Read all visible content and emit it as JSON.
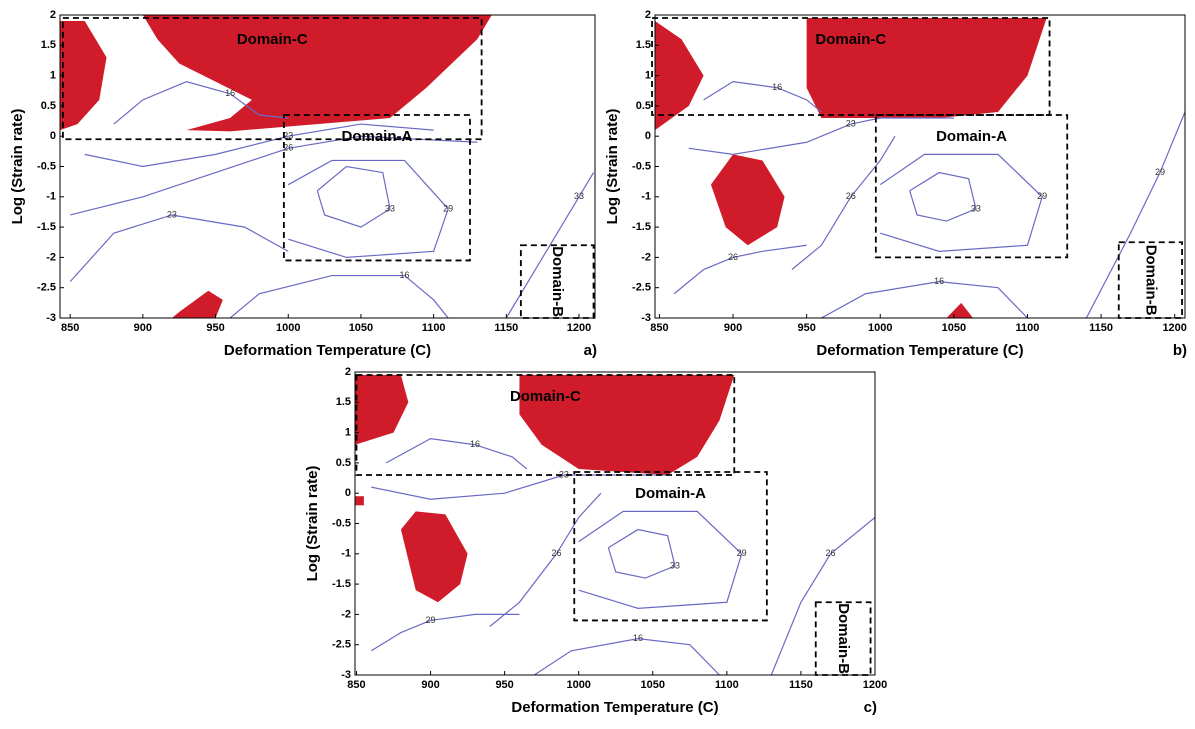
{
  "chart_data": [
    {
      "type": "contour",
      "panel": "a)",
      "xlabel": "Deformation Temperature (C)",
      "ylabel": "Log (Strain rate)",
      "xlim": [
        843,
        1211
      ],
      "ylim": [
        -3,
        2
      ],
      "xticks": [
        850,
        900,
        950,
        1000,
        1050,
        1100,
        1150,
        1200
      ],
      "yticks": [
        2,
        1.5,
        1,
        0.5,
        0,
        -0.5,
        -1,
        -1.5,
        -2,
        -2.5,
        -3
      ],
      "contour_color": "#6a6ac4",
      "region_color": "#d01c2a",
      "unstable_regions": [
        {
          "x": [
            843,
            860,
            875,
            870,
            855,
            843
          ],
          "y": [
            1.9,
            1.9,
            1.3,
            0.6,
            0.2,
            0.1
          ]
        },
        {
          "x": [
            900,
            1140,
            1130,
            1095,
            1070,
            960,
            930,
            960,
            975,
            950,
            925,
            910
          ],
          "y": [
            2,
            2,
            1.6,
            0.8,
            0.3,
            0.08,
            0.1,
            0.3,
            0.6,
            0.9,
            1.2,
            1.6
          ]
        },
        {
          "x": [
            920,
            925,
            945,
            955,
            950
          ],
          "y": [
            -3,
            -2.9,
            -2.55,
            -2.7,
            -3
          ]
        }
      ],
      "contours": [
        {
          "level": 16,
          "x": [
            880,
            900,
            930,
            960,
            980,
            1000
          ],
          "y": [
            0.2,
            0.6,
            0.9,
            0.7,
            0.35,
            0.3
          ]
        },
        {
          "level": 23,
          "x": [
            860,
            900,
            950,
            1000,
            1050,
            1100
          ],
          "y": [
            -0.3,
            -0.5,
            -0.3,
            0,
            0.2,
            0.1
          ]
        },
        {
          "level": 26,
          "x": [
            850,
            900,
            950,
            1000,
            1050,
            1130
          ],
          "y": [
            -1.3,
            -1.0,
            -0.6,
            -0.2,
            0,
            -0.1
          ]
        },
        {
          "level": 29,
          "x": [
            1000,
            1030,
            1080,
            1110,
            1100,
            1040,
            1000
          ],
          "y": [
            -0.8,
            -0.4,
            -0.4,
            -1.2,
            -1.9,
            -2.0,
            -1.7
          ]
        },
        {
          "level": 33,
          "x": [
            1020,
            1040,
            1065,
            1070,
            1050,
            1025,
            1020
          ],
          "y": [
            -0.9,
            -0.5,
            -0.6,
            -1.2,
            -1.5,
            -1.3,
            -0.9
          ]
        },
        {
          "level": 23,
          "x": [
            850,
            880,
            920,
            970,
            1000
          ],
          "y": [
            -2.4,
            -1.6,
            -1.3,
            -1.5,
            -1.9
          ]
        },
        {
          "level": 16,
          "x": [
            960,
            980,
            1030,
            1080,
            1100,
            1110
          ],
          "y": [
            -3,
            -2.6,
            -2.3,
            -2.3,
            -2.7,
            -3
          ]
        },
        {
          "level": 33,
          "x": [
            1150,
            1180,
            1200,
            1210
          ],
          "y": [
            -3,
            -1.8,
            -1.0,
            -0.6
          ]
        }
      ],
      "domains": [
        {
          "label": "Domain-C",
          "x": [
            845,
            1133
          ],
          "y": [
            -0.05,
            1.95
          ]
        },
        {
          "label": "Domain-A",
          "x": [
            997,
            1125
          ],
          "y": [
            -2.05,
            0.35
          ]
        },
        {
          "label": "Domain-B",
          "x": [
            1160,
            1210
          ],
          "y": [
            -3,
            -1.8
          ]
        }
      ]
    },
    {
      "type": "contour",
      "panel": "b)",
      "xlabel": "Deformation Temperature (C)",
      "ylabel": "Log (Strain rate)",
      "xlim": [
        847,
        1207
      ],
      "ylim": [
        -3,
        2
      ],
      "xticks": [
        850,
        900,
        950,
        1000,
        1050,
        1100,
        1150,
        1200
      ],
      "yticks": [
        2,
        1.5,
        1,
        0.5,
        0,
        -0.5,
        -1,
        -1.5,
        -2,
        -2.5,
        -3
      ],
      "contour_color": "#6a6ac4",
      "region_color": "#d01c2a",
      "unstable_regions": [
        {
          "x": [
            847,
            865,
            880,
            870,
            847
          ],
          "y": [
            1.9,
            1.6,
            1.0,
            0.5,
            0.1
          ]
        },
        {
          "x": [
            950,
            1113,
            1100,
            1080,
            1040,
            960,
            950
          ],
          "y": [
            1.95,
            1.95,
            1.0,
            0.4,
            0.3,
            0.3,
            0.8
          ]
        },
        {
          "x": [
            900,
            920,
            935,
            930,
            910,
            895,
            885
          ],
          "y": [
            -0.3,
            -0.4,
            -1.0,
            -1.5,
            -1.8,
            -1.5,
            -0.8
          ]
        },
        {
          "x": [
            1045,
            1055,
            1063
          ],
          "y": [
            -3,
            -2.75,
            -3
          ]
        }
      ],
      "contours": [
        {
          "level": 16,
          "x": [
            880,
            900,
            930,
            950,
            960
          ],
          "y": [
            0.6,
            0.9,
            0.8,
            0.6,
            0.4
          ]
        },
        {
          "level": 23,
          "x": [
            870,
            900,
            950,
            980,
            1000,
            1050
          ],
          "y": [
            -0.2,
            -0.3,
            -0.1,
            0.2,
            0.3,
            0.3
          ]
        },
        {
          "level": 26,
          "x": [
            940,
            960,
            980,
            1000,
            1010
          ],
          "y": [
            -2.2,
            -1.8,
            -1.0,
            -0.4,
            0
          ]
        },
        {
          "level": 29,
          "x": [
            1000,
            1030,
            1080,
            1110,
            1100,
            1040,
            1000
          ],
          "y": [
            -0.8,
            -0.3,
            -0.3,
            -1.0,
            -1.8,
            -1.9,
            -1.6
          ]
        },
        {
          "level": 33,
          "x": [
            1020,
            1040,
            1060,
            1065,
            1045,
            1025,
            1020
          ],
          "y": [
            -0.9,
            -0.6,
            -0.7,
            -1.2,
            -1.4,
            -1.3,
            -0.9
          ]
        },
        {
          "level": 26,
          "x": [
            860,
            880,
            900,
            920,
            950
          ],
          "y": [
            -2.6,
            -2.2,
            -2.0,
            -1.9,
            -1.8
          ]
        },
        {
          "level": 16,
          "x": [
            960,
            990,
            1040,
            1080,
            1100
          ],
          "y": [
            -3,
            -2.6,
            -2.4,
            -2.5,
            -3
          ]
        },
        {
          "level": 29,
          "x": [
            1140,
            1170,
            1190,
            1207
          ],
          "y": [
            -3,
            -1.6,
            -0.6,
            0.4
          ]
        }
      ],
      "domains": [
        {
          "label": "Domain-C",
          "x": [
            845,
            1115
          ],
          "y": [
            0.35,
            1.95
          ]
        },
        {
          "label": "Domain-A",
          "x": [
            997,
            1127
          ],
          "y": [
            -2,
            0.35
          ]
        },
        {
          "label": "Domain-B",
          "x": [
            1162,
            1205
          ],
          "y": [
            -3,
            -1.75
          ]
        }
      ]
    },
    {
      "type": "contour",
      "panel": "c)",
      "xlabel": "Deformation Temperature (C)",
      "ylabel": "Log (Strain rate)",
      "xlim": [
        849,
        1200
      ],
      "ylim": [
        -3,
        2
      ],
      "xticks": [
        850,
        900,
        950,
        1000,
        1050,
        1100,
        1150,
        1200
      ],
      "yticks": [
        2,
        1.5,
        1,
        0.5,
        0,
        -0.5,
        -1,
        -1.5,
        -2,
        -2.5,
        -3
      ],
      "contour_color": "#6a6ac4",
      "region_color": "#d01c2a",
      "unstable_regions": [
        {
          "x": [
            849,
            880,
            885,
            875,
            849
          ],
          "y": [
            1.95,
            1.95,
            1.5,
            1.0,
            0.8
          ]
        },
        {
          "x": [
            960,
            1105,
            1095,
            1080,
            1060,
            1000,
            975,
            960
          ],
          "y": [
            1.95,
            1.95,
            1.2,
            0.6,
            0.3,
            0.4,
            0.8,
            1.3
          ]
        },
        {
          "x": [
            890,
            910,
            925,
            920,
            905,
            890,
            880
          ],
          "y": [
            -0.3,
            -0.35,
            -1.0,
            -1.5,
            -1.8,
            -1.6,
            -0.6
          ]
        },
        {
          "x": [
            849,
            855,
            855,
            849
          ],
          "y": [
            -0.05,
            -0.05,
            -0.2,
            -0.2
          ]
        }
      ],
      "contours": [
        {
          "level": 16,
          "x": [
            870,
            900,
            930,
            955,
            965
          ],
          "y": [
            0.5,
            0.9,
            0.8,
            0.6,
            0.4
          ]
        },
        {
          "level": 23,
          "x": [
            860,
            900,
            950,
            990,
            1020,
            1060
          ],
          "y": [
            0.1,
            -0.1,
            0.0,
            0.3,
            0.3,
            0.3
          ]
        },
        {
          "level": 26,
          "x": [
            940,
            960,
            985,
            1000,
            1015
          ],
          "y": [
            -2.2,
            -1.8,
            -1.0,
            -0.4,
            0
          ]
        },
        {
          "level": 29,
          "x": [
            1000,
            1030,
            1080,
            1110,
            1100,
            1040,
            1000
          ],
          "y": [
            -0.8,
            -0.3,
            -0.3,
            -1.0,
            -1.8,
            -1.9,
            -1.6
          ]
        },
        {
          "level": 33,
          "x": [
            1020,
            1040,
            1060,
            1065,
            1045,
            1025,
            1020
          ],
          "y": [
            -0.9,
            -0.6,
            -0.7,
            -1.2,
            -1.4,
            -1.3,
            -0.9
          ]
        },
        {
          "level": 29,
          "x": [
            860,
            880,
            900,
            930,
            960
          ],
          "y": [
            -2.6,
            -2.3,
            -2.1,
            -2.0,
            -2.0
          ]
        },
        {
          "level": 16,
          "x": [
            970,
            995,
            1040,
            1075,
            1095
          ],
          "y": [
            -3,
            -2.6,
            -2.4,
            -2.5,
            -3
          ]
        },
        {
          "level": 26,
          "x": [
            1130,
            1150,
            1170,
            1200
          ],
          "y": [
            -3,
            -1.8,
            -1.0,
            -0.4
          ]
        }
      ],
      "domains": [
        {
          "label": "Domain-C",
          "x": [
            850,
            1105
          ],
          "y": [
            0.3,
            1.95
          ]
        },
        {
          "label": "Domain-A",
          "x": [
            997,
            1127
          ],
          "y": [
            -2.1,
            0.35
          ]
        },
        {
          "label": "Domain-B",
          "x": [
            1160,
            1197
          ],
          "y": [
            -3,
            -1.8
          ]
        }
      ]
    }
  ]
}
